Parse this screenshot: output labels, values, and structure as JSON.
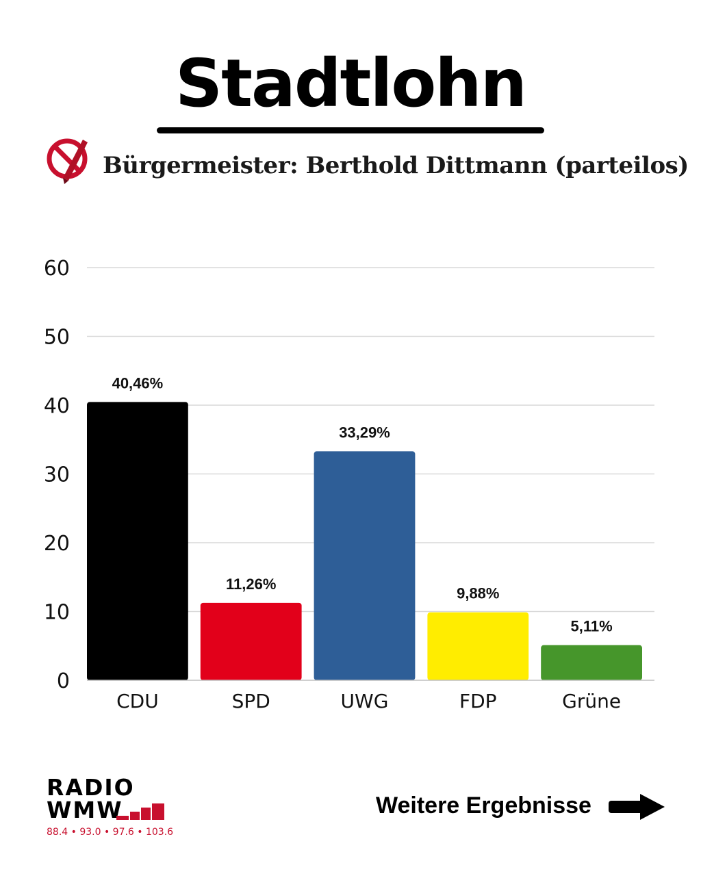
{
  "header": {
    "title": "Stadtlohn",
    "subtitle": "Bürgermeister: Berthold Dittmann (parteilos)",
    "icon": "ballot-cross-icon"
  },
  "chart_data": {
    "type": "bar",
    "title": "",
    "xlabel": "",
    "ylabel": "",
    "categories": [
      "CDU",
      "SPD",
      "UWG",
      "FDP",
      "Grüne"
    ],
    "values": [
      40.46,
      11.26,
      33.29,
      9.88,
      5.11
    ],
    "data_labels": [
      "40,46%",
      "11,26%",
      "33,29%",
      "9,88%",
      "5,11%"
    ],
    "colors": [
      "#000000",
      "#e2001a",
      "#2e5e97",
      "#ffed00",
      "#46962b"
    ],
    "ylim": [
      0,
      60
    ],
    "yticks": [
      "0",
      "10",
      "20",
      "30",
      "40",
      "50",
      "60"
    ],
    "grid": true,
    "legend": "none"
  },
  "footer": {
    "logo_line1": "RADIO",
    "logo_line2": "WMW",
    "logo_frequencies": "88.4 • 93.0 • 97.6 • 103.6",
    "logo_accent_color": "#c8102e",
    "more_results_label": "Weitere Ergebnisse",
    "arrow_icon": "arrow-right-icon"
  }
}
